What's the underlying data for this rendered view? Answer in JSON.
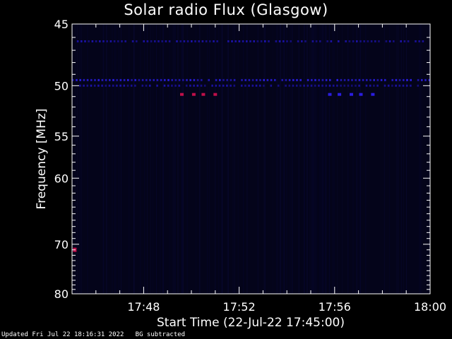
{
  "title": "Solar radio Flux (Glasgow)",
  "footer": {
    "updated": "Updated Fri Jul 22 18:16:31 2022",
    "note": "BG subtracted"
  },
  "chart_data": {
    "type": "heatmap",
    "title": "Solar radio Flux (Glasgow)",
    "xlabel": "Start Time (22-Jul-22 17:45:00)",
    "ylabel": "Frequency [MHz]",
    "x_ticks": [
      "17:48",
      "17:52",
      "17:56",
      "18:00"
    ],
    "x_tick_minutes": [
      48,
      52,
      56,
      60
    ],
    "xlim_minutes": [
      45,
      60
    ],
    "y_ticks": [
      45,
      50,
      55,
      60,
      70,
      80
    ],
    "ylim": [
      45,
      80
    ],
    "y_scale": "reciprocal",
    "background_color": "#04041a",
    "features": [
      {
        "kind": "band",
        "freq": 46.3,
        "intensity": "low",
        "x_from_minute": 45.2,
        "x_to_minute": 59.8
      },
      {
        "kind": "band",
        "freq": 49.5,
        "intensity": "medium",
        "x_from_minute": 45.0,
        "x_to_minute": 60.0
      },
      {
        "kind": "band",
        "freq": 50.0,
        "intensity": "low",
        "x_from_minute": 45.3,
        "x_to_minute": 59.6
      },
      {
        "kind": "spots",
        "freq": 50.8,
        "intensity": "high",
        "minutes": [
          49.6,
          50.1,
          50.5,
          51.0
        ]
      },
      {
        "kind": "spots",
        "freq": 50.8,
        "intensity": "medium",
        "minutes": [
          55.8,
          56.2,
          56.7,
          57.1,
          57.6
        ]
      },
      {
        "kind": "spot",
        "freq": 71.0,
        "intensity": "high",
        "minute": 45.1
      }
    ]
  }
}
